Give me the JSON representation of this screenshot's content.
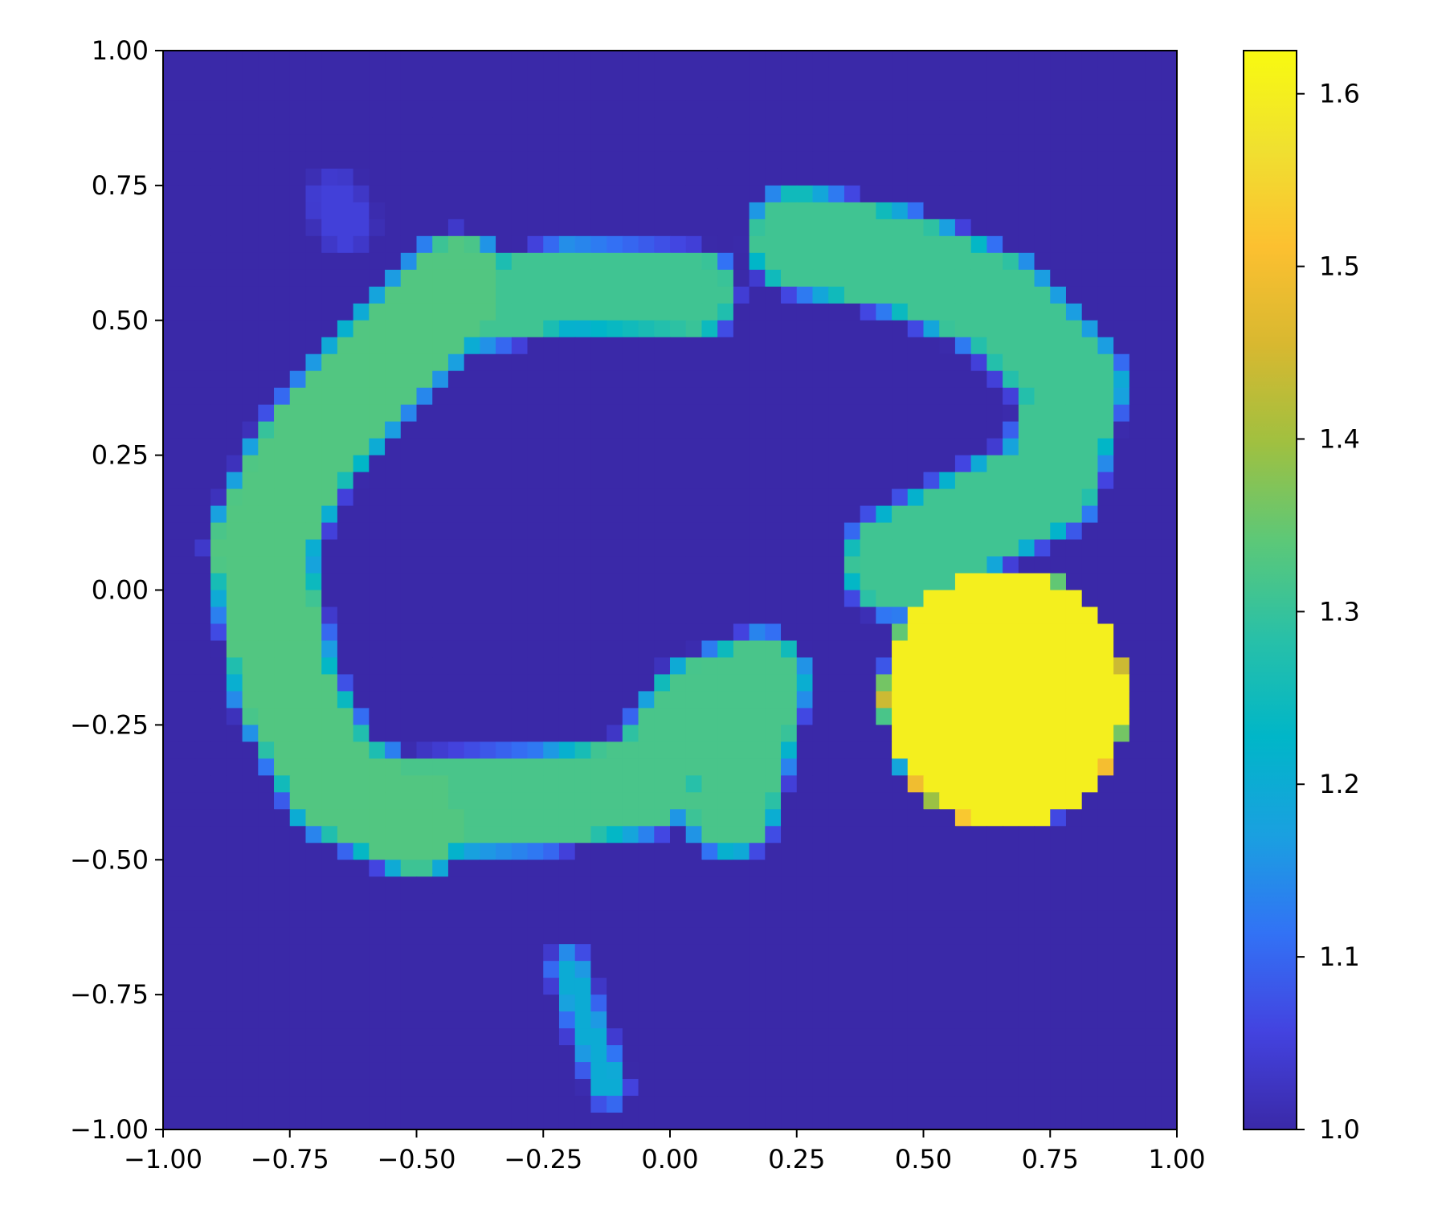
{
  "chart_data": {
    "type": "heatmap",
    "title": "",
    "xlabel": "",
    "ylabel": "",
    "xlim": [
      -1.0,
      1.0
    ],
    "ylim": [
      -1.0,
      1.0
    ],
    "grid": false,
    "x_ticks": [
      "−1.00",
      "−0.75",
      "−0.50",
      "−0.25",
      "0.00",
      "0.25",
      "0.50",
      "0.75",
      "1.00"
    ],
    "y_ticks": [
      "1.00",
      "0.75",
      "0.50",
      "0.25",
      "0.00",
      "−0.25",
      "−0.50",
      "−0.75",
      "−1.00"
    ],
    "x_tick_values": [
      -1.0,
      -0.75,
      -0.5,
      -0.25,
      0.0,
      0.25,
      0.5,
      0.75,
      1.0
    ],
    "y_tick_values": [
      1.0,
      0.75,
      0.5,
      0.25,
      0.0,
      -0.25,
      -0.5,
      -0.75,
      -1.0
    ],
    "colorbar": {
      "range": [
        1.0,
        1.625
      ],
      "ticks": [
        "1.0",
        "1.1",
        "1.2",
        "1.3",
        "1.4",
        "1.5",
        "1.6"
      ],
      "tick_values": [
        1.0,
        1.1,
        1.2,
        1.3,
        1.4,
        1.5,
        1.6
      ],
      "colormap": [
        "#3a29a8",
        "#4343e0",
        "#3272f5",
        "#1aa0e0",
        "#00b6c8",
        "#28c0a8",
        "#5cc878",
        "#a0c040",
        "#d8b830",
        "#fcc030",
        "#f0e030",
        "#f8fa10"
      ]
    },
    "background_value": 1.0,
    "grid_size": 64,
    "regions": [
      {
        "name": "left-band",
        "shape": "polyline-band",
        "value": 1.33,
        "halfwidth": 0.085,
        "points": [
          [
            -0.42,
            0.56
          ],
          [
            -0.58,
            0.41
          ],
          [
            -0.73,
            0.24
          ],
          [
            -0.81,
            0.08
          ],
          [
            -0.76,
            -0.18
          ],
          [
            -0.66,
            -0.36
          ],
          [
            -0.5,
            -0.43
          ]
        ]
      },
      {
        "name": "top-band",
        "shape": "polyline-band",
        "value": 1.31,
        "halfwidth": 0.065,
        "points": [
          [
            -0.45,
            0.52
          ],
          [
            -0.2,
            0.56
          ],
          [
            0.05,
            0.55
          ]
        ]
      },
      {
        "name": "bottom-band",
        "shape": "polyline-band",
        "value": 1.32,
        "halfwidth": 0.075,
        "points": [
          [
            -0.5,
            -0.4
          ],
          [
            -0.25,
            -0.39
          ],
          [
            -0.05,
            -0.36
          ],
          [
            0.05,
            -0.22
          ],
          [
            0.18,
            -0.17
          ],
          [
            0.12,
            -0.4
          ]
        ]
      },
      {
        "name": "upper-right-band",
        "shape": "polyline-band",
        "value": 1.31,
        "halfwidth": 0.08,
        "points": [
          [
            0.25,
            0.65
          ],
          [
            0.45,
            0.61
          ],
          [
            0.65,
            0.53
          ],
          [
            0.8,
            0.38
          ],
          [
            0.75,
            0.2
          ],
          [
            0.58,
            0.12
          ],
          [
            0.44,
            0.05
          ]
        ]
      },
      {
        "name": "streak",
        "shape": "polyline-band",
        "value": 1.2,
        "halfwidth": 0.02,
        "points": [
          [
            -0.2,
            -0.7
          ],
          [
            -0.16,
            -0.82
          ],
          [
            -0.12,
            -0.92
          ]
        ]
      },
      {
        "name": "faint-spot",
        "shape": "polyline-band",
        "value": 1.05,
        "halfwidth": 0.04,
        "points": [
          [
            -0.66,
            0.72
          ],
          [
            -0.64,
            0.68
          ]
        ]
      },
      {
        "name": "hot-disc",
        "shape": "disc",
        "value": 1.6,
        "center": [
          0.66,
          -0.2
        ],
        "radius": 0.235
      }
    ]
  }
}
